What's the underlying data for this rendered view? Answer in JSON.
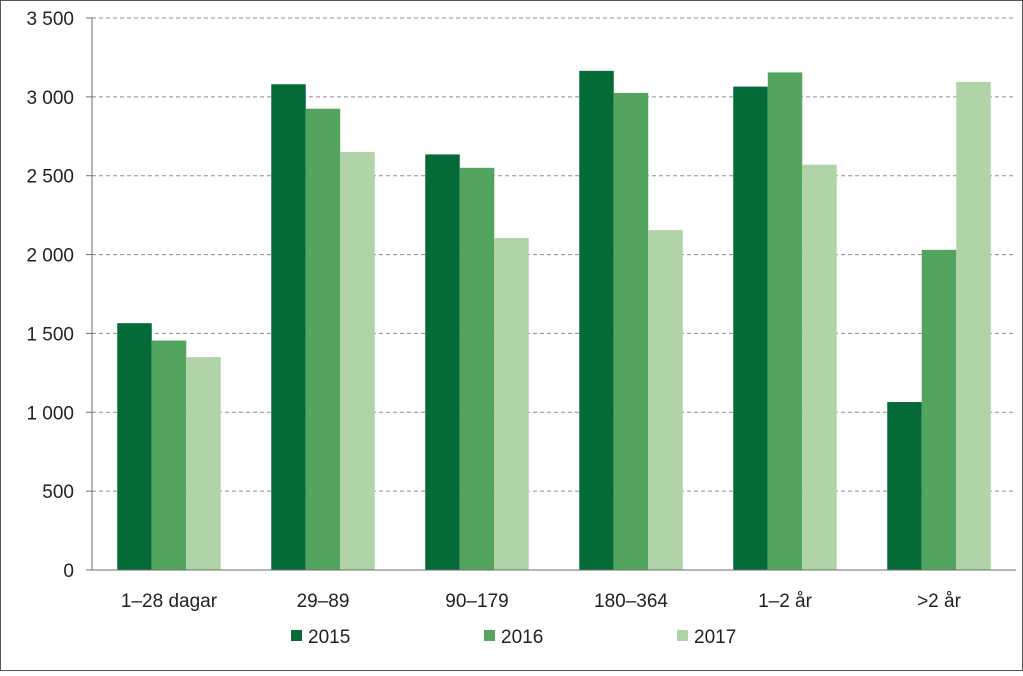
{
  "chart_data": {
    "type": "bar",
    "title": "",
    "xlabel": "",
    "ylabel": "",
    "categories": [
      "1–28 dagar",
      "29–89",
      "90–179",
      "180–364",
      "1–2 år",
      ">2 år"
    ],
    "series": [
      {
        "name": "2015",
        "color": "#046a38",
        "values": [
          1565,
          3080,
          2635,
          3165,
          3065,
          1065
        ]
      },
      {
        "name": "2016",
        "color": "#53a45f",
        "values": [
          1455,
          2925,
          2550,
          3025,
          3155,
          2030
        ]
      },
      {
        "name": "2017",
        "color": "#b1d3a8",
        "values": [
          1350,
          2650,
          2105,
          2155,
          2570,
          3095
        ]
      }
    ],
    "ylim": [
      0,
      3500
    ],
    "yticks": [
      0,
      500,
      1000,
      1500,
      2000,
      2500,
      3000,
      3500
    ],
    "ytick_labels": [
      "0",
      "500",
      "1 000",
      "1 500",
      "2 000",
      "2 500",
      "3 000",
      "3 500"
    ],
    "grid": true,
    "grid_style": "dashed",
    "legend_position": "bottom"
  }
}
